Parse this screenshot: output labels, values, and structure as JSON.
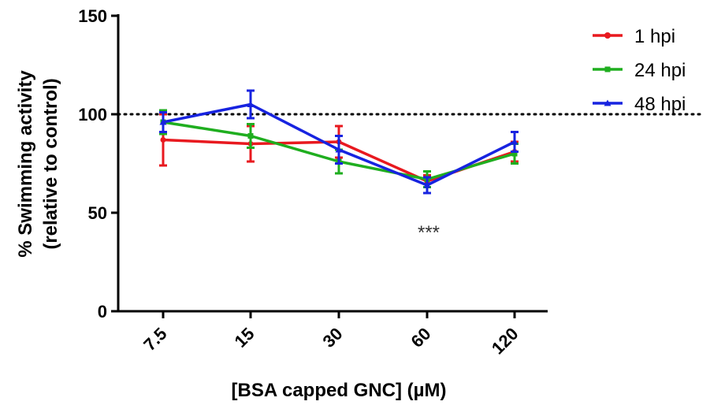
{
  "chart_data": {
    "type": "line",
    "categories": [
      "7.5",
      "15",
      "30",
      "60",
      "120"
    ],
    "xlabel": "[BSA capped GNC] (µM)",
    "ylabel_line1": "% Swimming activity",
    "ylabel_line2": "(relative to control)",
    "ylim": [
      0,
      150
    ],
    "yticks": [
      "0",
      "50",
      "100",
      "150"
    ],
    "reference_line": 100,
    "annotation": {
      "text": "***",
      "category": "60"
    },
    "legend_position": "top-right",
    "grid": false,
    "series": [
      {
        "name": "1 hpi",
        "color": "#e8191f",
        "marker": "circle",
        "values": [
          87,
          85,
          86,
          66,
          81
        ],
        "errors": [
          13,
          9,
          8,
          3,
          5
        ]
      },
      {
        "name": "24 hpi",
        "color": "#1fae1f",
        "marker": "square",
        "values": [
          96,
          89,
          76,
          67,
          80
        ],
        "errors": [
          6,
          6,
          6,
          4,
          5
        ]
      },
      {
        "name": "48 hpi",
        "color": "#1723e0",
        "marker": "triangle",
        "values": [
          96,
          105,
          82,
          64,
          86
        ],
        "errors": [
          5,
          7,
          7,
          4,
          5
        ]
      }
    ]
  }
}
